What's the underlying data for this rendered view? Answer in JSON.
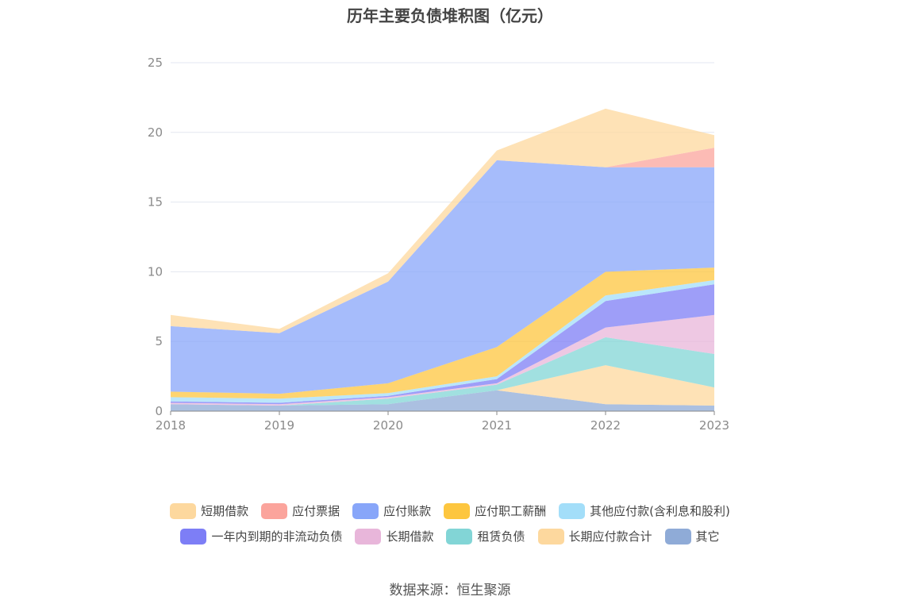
{
  "chart_data": {
    "type": "area",
    "stacked": true,
    "title": "历年主要负债堆积图（亿元）",
    "source": "数据来源：恒生聚源",
    "x": [
      "2018",
      "2019",
      "2020",
      "2021",
      "2022",
      "2023"
    ],
    "ylim": [
      0,
      25
    ],
    "yticks": [
      "0",
      "5",
      "10",
      "15",
      "20",
      "25"
    ],
    "grid": true,
    "legend_position": "bottom",
    "stack_order": [
      "其它",
      "长期应付款合计",
      "租赁负债",
      "长期借款",
      "一年内到期的非流动负债",
      "其他应付款(含利息和股利)",
      "应付职工薪酬",
      "应付账款",
      "应付票据",
      "短期借款"
    ],
    "series": [
      {
        "name": "短期借款",
        "color": "#fdd89e",
        "values": [
          0.8,
          0.3,
          0.6,
          0.7,
          4.2,
          0.9
        ]
      },
      {
        "name": "应付票据",
        "color": "#fba49c",
        "values": [
          0.0,
          0.0,
          0.0,
          0.0,
          0.0,
          1.4
        ]
      },
      {
        "name": "应付账款",
        "color": "#88a6f9",
        "values": [
          4.7,
          4.35,
          7.3,
          13.4,
          7.5,
          7.2
        ]
      },
      {
        "name": "应付职工薪酬",
        "color": "#fdc63f",
        "values": [
          0.4,
          0.35,
          0.7,
          2.1,
          1.7,
          0.9
        ]
      },
      {
        "name": "其他应付款(含利息和股利)",
        "color": "#a3def9",
        "values": [
          0.3,
          0.3,
          0.2,
          0.2,
          0.4,
          0.3
        ]
      },
      {
        "name": "一年内到期的非流动负债",
        "color": "#7d7ef6",
        "values": [
          0.1,
          0.1,
          0.1,
          0.3,
          1.9,
          2.2
        ]
      },
      {
        "name": "长期借款",
        "color": "#e8b6da",
        "values": [
          0.1,
          0.1,
          0.1,
          0.1,
          0.7,
          2.8
        ]
      },
      {
        "name": "租赁负债",
        "color": "#82d5d6",
        "values": [
          0.0,
          0.0,
          0.4,
          0.4,
          2.0,
          2.4
        ]
      },
      {
        "name": "长期应付款合计",
        "color": "#fdd89e",
        "values": [
          0.0,
          0.0,
          0.0,
          0.0,
          2.8,
          1.3
        ]
      },
      {
        "name": "其它",
        "color": "#8fabd7",
        "values": [
          0.5,
          0.4,
          0.5,
          1.5,
          0.5,
          0.4
        ]
      }
    ]
  }
}
